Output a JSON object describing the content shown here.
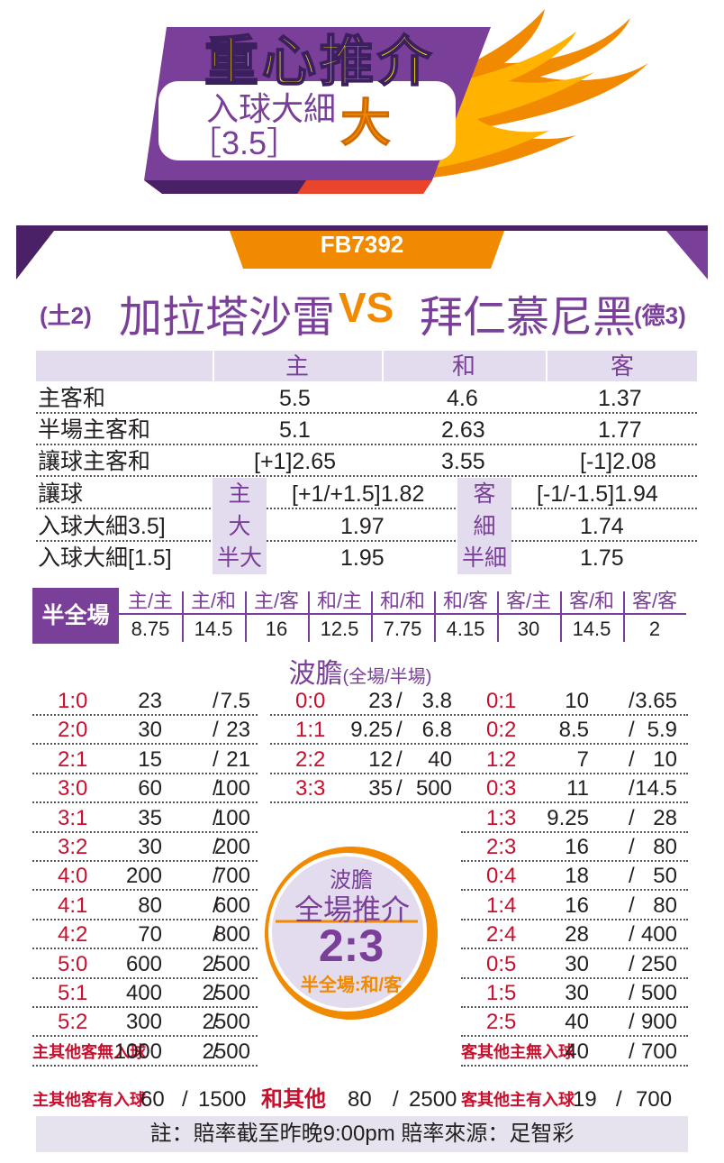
{
  "banner": {
    "title": "重心推介",
    "market_line1": "入球大細",
    "market_line2": "［3.5］",
    "pick": "大"
  },
  "match": {
    "code": "FB7392",
    "home_rank": "(土2)",
    "home_team": "加拉塔沙雷",
    "vs": "VS",
    "away_team": "拜仁慕尼黑",
    "away_rank": "(德3)"
  },
  "odds_table": {
    "headers": [
      "主",
      "和",
      "客"
    ],
    "rows": [
      {
        "label": "主客和",
        "home": "5.5",
        "draw": "4.6",
        "away": "1.37"
      },
      {
        "label": "半場主客和",
        "home": "5.1",
        "draw": "2.63",
        "away": "1.77"
      },
      {
        "label": "讓球主客和",
        "home": "[+1]2.65",
        "draw": "3.55",
        "away": "[-1]2.08"
      }
    ],
    "handicap": {
      "label": "讓球",
      "tag1": "主",
      "val1": "[+1/+1.5]1.82",
      "tag2": "客",
      "val2": "[-1/-1.5]1.94"
    },
    "total1": {
      "label": "入球大細3.5]",
      "tag1": "大",
      "val1": "1.97",
      "tag2": "細",
      "val2": "1.74"
    },
    "total2": {
      "label": "入球大細[1.5]",
      "tag1": "半大",
      "val1": "1.95",
      "tag2": "半細",
      "val2": "1.75"
    }
  },
  "half_full": {
    "label": "半全場",
    "columns": [
      {
        "h": "主/主",
        "v": "8.75"
      },
      {
        "h": "主/和",
        "v": "14.5"
      },
      {
        "h": "主/客",
        "v": "16"
      },
      {
        "h": "和/主",
        "v": "12.5"
      },
      {
        "h": "和/和",
        "v": "7.75"
      },
      {
        "h": "和/客",
        "v": "4.15"
      },
      {
        "h": "客/主",
        "v": "30"
      },
      {
        "h": "客/和",
        "v": "14.5"
      },
      {
        "h": "客/客",
        "v": "2"
      }
    ]
  },
  "correct_score": {
    "title": "波膽",
    "title_note": "(全場/半場)",
    "home_wins": [
      {
        "s": "1:0",
        "a": "23",
        "b": "7.5"
      },
      {
        "s": "2:0",
        "a": "30",
        "b": "23"
      },
      {
        "s": "2:1",
        "a": "15",
        "b": "21"
      },
      {
        "s": "3:0",
        "a": "60",
        "b": "100"
      },
      {
        "s": "3:1",
        "a": "35",
        "b": "100"
      },
      {
        "s": "3:2",
        "a": "30",
        "b": "200"
      },
      {
        "s": "4:0",
        "a": "200",
        "b": "700"
      },
      {
        "s": "4:1",
        "a": "80",
        "b": "600"
      },
      {
        "s": "4:2",
        "a": "70",
        "b": "800"
      },
      {
        "s": "5:0",
        "a": "600",
        "b": "2500"
      },
      {
        "s": "5:1",
        "a": "400",
        "b": "2500"
      },
      {
        "s": "5:2",
        "a": "300",
        "b": "2500"
      },
      {
        "s": "主其他客無入球",
        "a": "1000",
        "b": "2500"
      },
      {
        "s": "主其他客有入球",
        "a": "60",
        "b": "1500"
      }
    ],
    "draws": [
      {
        "s": "0:0",
        "a": "23",
        "b": "3.8"
      },
      {
        "s": "1:1",
        "a": "9.25",
        "b": "6.8"
      },
      {
        "s": "2:2",
        "a": "12",
        "b": "40"
      },
      {
        "s": "3:3",
        "a": "35",
        "b": "500"
      }
    ],
    "draw_other": {
      "s": "和其他",
      "a": "80",
      "b": "2500"
    },
    "away_wins": [
      {
        "s": "0:1",
        "a": "10",
        "b": "3.65"
      },
      {
        "s": "0:2",
        "a": "8.5",
        "b": "5.9"
      },
      {
        "s": "1:2",
        "a": "7",
        "b": "10"
      },
      {
        "s": "0:3",
        "a": "11",
        "b": "14.5"
      },
      {
        "s": "1:3",
        "a": "9.25",
        "b": "28"
      },
      {
        "s": "2:3",
        "a": "16",
        "b": "80"
      },
      {
        "s": "0:4",
        "a": "18",
        "b": "50"
      },
      {
        "s": "1:4",
        "a": "16",
        "b": "80"
      },
      {
        "s": "2:4",
        "a": "28",
        "b": "400"
      },
      {
        "s": "0:5",
        "a": "30",
        "b": "250"
      },
      {
        "s": "1:5",
        "a": "30",
        "b": "500"
      },
      {
        "s": "2:5",
        "a": "40",
        "b": "900"
      },
      {
        "s": "客其他主無入球",
        "a": "40",
        "b": "700"
      },
      {
        "s": "客其他主有入球",
        "a": "19",
        "b": "700"
      }
    ],
    "recommendation": {
      "title": "波膽",
      "subtitle": "全場推介",
      "score": "2:3",
      "half_full": "半全場:和/客"
    }
  },
  "footer": "註：賠率截至昨晚9:00pm 賠率來源：足智彩",
  "colors": {
    "purple": "#7a3f98",
    "orange": "#f18a00",
    "yellow": "#ffe600",
    "red": "#c8102e"
  }
}
